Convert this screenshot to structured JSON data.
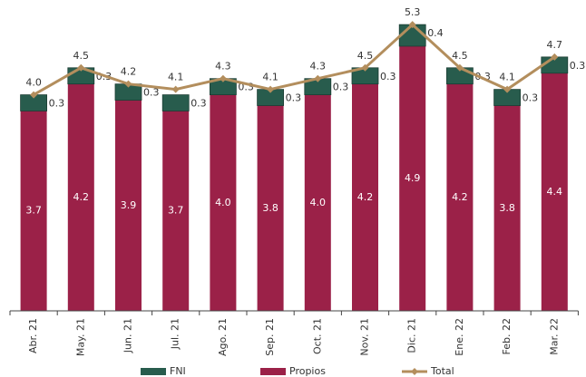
{
  "chart_data": {
    "type": "bar",
    "categories": [
      "Abr. 21",
      "May. 21",
      "Jun. 21",
      "Jul. 21",
      "Ago. 21",
      "Sep. 21",
      "Oct. 21",
      "Nov. 21",
      "Dic. 21",
      "Ene. 22",
      "Feb. 22",
      "Mar. 22"
    ],
    "stacked": true,
    "series": [
      {
        "name": "Propios",
        "color": "#9b2148",
        "values": [
          3.7,
          4.2,
          3.9,
          3.7,
          4,
          3.8,
          4,
          4.2,
          4.9,
          4.2,
          3.8,
          4.4
        ],
        "value_labels": [
          "3.7",
          "4.2",
          "3.9",
          "3.7",
          "4.0",
          "3.8",
          "4.0",
          "4.2",
          "4.9",
          "4.2",
          "3.8",
          "4.4"
        ]
      },
      {
        "name": "FNI",
        "color": "#285c4d",
        "values": [
          0.3,
          0.3,
          0.3,
          0.3,
          0.3,
          0.3,
          0.3,
          0.3,
          0.4,
          0.3,
          0.3,
          0.3
        ],
        "value_labels": [
          "0.3",
          "0.3",
          "0.3",
          "0.3",
          "0.3",
          "0.3",
          "0.3",
          "0.3",
          "0.4",
          "0.3",
          "0.3",
          "0.3"
        ]
      },
      {
        "name": "Total",
        "type": "line",
        "color": "#b38e5d",
        "values": [
          4,
          4.5,
          4.2,
          4.1,
          4.3,
          4.1,
          4.3,
          4.5,
          5.3,
          4.5,
          4.1,
          4.7
        ],
        "value_labels": [
          "4.0",
          "4.5",
          "4.2",
          "4.1",
          "4.3",
          "4.1",
          "4.3",
          "4.5",
          "5.3",
          "4.5",
          "4.1",
          "4.7"
        ]
      }
    ],
    "legend_order": [
      "FNI",
      "Propios",
      "Total"
    ]
  }
}
